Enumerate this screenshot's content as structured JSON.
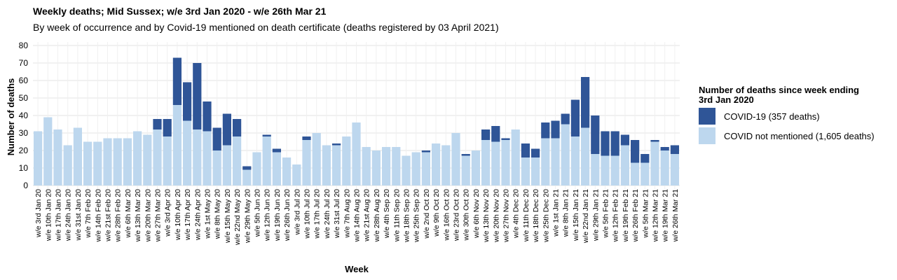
{
  "chart_data": {
    "type": "bar",
    "stacked": true,
    "title": "Weekly deaths; Mid Sussex; w/e 3rd Jan 2020 - w/e 26th Mar 21",
    "subtitle": "By week of occurrence and by Covid-19 mentioned on death certificate (deaths registered by 03 April 2021)",
    "xlabel": "Week",
    "ylabel": "Number of deaths",
    "ylim": [
      0,
      80
    ],
    "yticks": [
      0,
      10,
      20,
      30,
      40,
      50,
      60,
      70,
      80
    ],
    "grid": true,
    "legend_position": "right",
    "legend_title": "Number of deaths since week ending 3rd Jan 2020",
    "categories": [
      "w/e 3rd Jan 20",
      "w/e 10th Jan 20",
      "w/e 17th Jan 20",
      "w/e 24th Jan 20",
      "w/e 31st Jan 20",
      "w/e 7th Feb 20",
      "w/e 14th Feb 20",
      "w/e 21st Feb 20",
      "w/e 28th Feb 20",
      "w/e 6th Mar 20",
      "w/e 13th Mar 20",
      "w/e 20th Mar 20",
      "w/e 27th Mar 20",
      "w/e 3rd Apr 20",
      "w/e 10th Apr 20",
      "w/e 17th Apr 20",
      "w/e 24th Apr 20",
      "w/e 1st May 20",
      "w/e 8th May 20",
      "w/e 15th May 20",
      "w/e 22nd May 20",
      "w/e 29th May 20",
      "w/e 5th Jun 20",
      "w/e 12th Jun 20",
      "w/e 19th Jun 20",
      "w/e 26th Jun 20",
      "w/e 3rd Jul 20",
      "w/e 10th Jul 20",
      "w/e 17th Jul 20",
      "w/e 24th Jul 20",
      "w/e 31st Jul 20",
      "w/e 7th Aug 20",
      "w/e 14th Aug 20",
      "w/e 21st Aug 20",
      "w/e 28th Aug 20",
      "w/e 4th Sep 20",
      "w/e 11th Sep 20",
      "w/e 18th Sep 20",
      "w/e 25th Sep 20",
      "w/e 2nd Oct 20",
      "w/e 9th Oct 20",
      "w/e 16th Oct 20",
      "w/e 23rd Oct 20",
      "w/e 30th Oct 20",
      "w/e 6th Nov 20",
      "w/e 13th Nov 20",
      "w/e 20th Nov 20",
      "w/e 27th Nov 20",
      "w/e 4th Dec 20",
      "w/e 11th Dec 20",
      "w/e 18th Dec 20",
      "w/e 25th Dec 20",
      "w/e 1st Jan 21",
      "w/e 8th Jan 21",
      "w/e 15th Jan 21",
      "w/e 22nd Jan 21",
      "w/e 29th Jan 21",
      "w/e 5th Feb 21",
      "w/e 12th Feb 21",
      "w/e 19th Feb 21",
      "w/e 26th Feb 21",
      "w/e 5th Mar 21",
      "w/e 12th Mar 21",
      "w/e 19th Mar 21",
      "w/e 26th Mar 21"
    ],
    "series": [
      {
        "name": "COVID not mentioned (1,605 deaths)",
        "color": "#bdd7ee",
        "values": [
          31,
          39,
          32,
          23,
          33,
          25,
          25,
          27,
          27,
          27,
          31,
          29,
          32,
          28,
          46,
          37,
          32,
          31,
          20,
          23,
          28,
          9,
          19,
          28,
          19,
          16,
          12,
          26,
          30,
          23,
          23,
          28,
          36,
          22,
          20,
          22,
          22,
          17,
          19,
          19,
          24,
          23,
          30,
          17,
          20,
          26,
          25,
          26,
          32,
          16,
          16,
          27,
          27,
          35,
          28,
          33,
          18,
          17,
          17,
          23,
          13,
          13,
          25,
          20,
          18
        ]
      },
      {
        "name": "COVID-19 (357 deaths)",
        "color": "#2f5597",
        "values": [
          0,
          0,
          0,
          0,
          0,
          0,
          0,
          0,
          0,
          0,
          0,
          0,
          6,
          10,
          27,
          22,
          38,
          17,
          13,
          18,
          10,
          2,
          0,
          1,
          2,
          0,
          0,
          2,
          0,
          0,
          1,
          0,
          0,
          0,
          0,
          0,
          0,
          0,
          0,
          1,
          0,
          0,
          0,
          1,
          0,
          6,
          9,
          1,
          0,
          8,
          5,
          9,
          10,
          6,
          21,
          29,
          22,
          14,
          14,
          6,
          13,
          5,
          1,
          2,
          5
        ]
      }
    ]
  }
}
